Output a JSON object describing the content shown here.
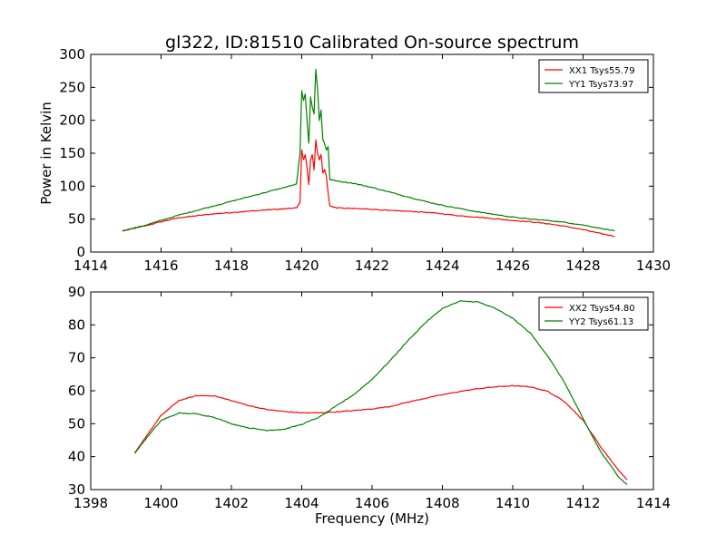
{
  "figure": {
    "title": "gl322, ID:81510 Calibrated On-source spectrum"
  },
  "chart_data": [
    {
      "type": "line",
      "title": "gl322, ID:81510 Calibrated On-source spectrum",
      "xlabel": "",
      "ylabel": "Power in Kelvin",
      "xlim": [
        1414,
        1430
      ],
      "ylim": [
        0,
        300
      ],
      "xticks": [
        1414,
        1416,
        1418,
        1420,
        1422,
        1424,
        1426,
        1428,
        1430
      ],
      "yticks": [
        0,
        50,
        100,
        150,
        200,
        250,
        300
      ],
      "grid": false,
      "legend_position": "top-right",
      "series": [
        {
          "name": "XX1 Tsys55.79",
          "color": "#ff0000",
          "x": [
            1414.9,
            1415.5,
            1416,
            1416.5,
            1417,
            1417.5,
            1418,
            1418.5,
            1419,
            1419.5,
            1419.85,
            1419.95,
            1420.0,
            1420.05,
            1420.1,
            1420.15,
            1420.2,
            1420.25,
            1420.3,
            1420.35,
            1420.4,
            1420.45,
            1420.5,
            1420.55,
            1420.6,
            1420.65,
            1420.7,
            1420.75,
            1420.8,
            1421,
            1421.5,
            1422,
            1422.5,
            1423,
            1423.5,
            1424,
            1424.5,
            1425,
            1425.5,
            1426,
            1426.5,
            1427,
            1427.5,
            1428,
            1428.5,
            1428.9
          ],
          "y": [
            32,
            39,
            46,
            52,
            55,
            58,
            60,
            62,
            64,
            65.5,
            67,
            75,
            155,
            140,
            148,
            128,
            103,
            140,
            148,
            125,
            170,
            150,
            140,
            148,
            120,
            125,
            115,
            90,
            70,
            67,
            66,
            65,
            63,
            62,
            60.5,
            58,
            55,
            53,
            50.5,
            48,
            46,
            43,
            39,
            34,
            28,
            24
          ]
        },
        {
          "name": "YY1 Tsys73.97",
          "color": "#008000",
          "x": [
            1414.9,
            1415.5,
            1416,
            1416.5,
            1417,
            1417.5,
            1418,
            1418.5,
            1419,
            1419.5,
            1419.85,
            1419.95,
            1420.0,
            1420.05,
            1420.1,
            1420.15,
            1420.2,
            1420.25,
            1420.3,
            1420.35,
            1420.4,
            1420.45,
            1420.5,
            1420.55,
            1420.6,
            1420.65,
            1420.7,
            1420.75,
            1420.8,
            1421,
            1421.5,
            1422,
            1422.5,
            1423,
            1423.5,
            1424,
            1424.5,
            1425,
            1425.5,
            1426,
            1426.5,
            1427,
            1427.5,
            1428,
            1428.5,
            1428.9
          ],
          "y": [
            32,
            40,
            48,
            56,
            63,
            70,
            77,
            84,
            91,
            98,
            103,
            150,
            245,
            230,
            240,
            200,
            165,
            235,
            220,
            210,
            277,
            248,
            200,
            215,
            170,
            165,
            155,
            160,
            110,
            108,
            104,
            98,
            91,
            84,
            77,
            71,
            66,
            61,
            57,
            53,
            50,
            48,
            45,
            41,
            36,
            32
          ]
        }
      ]
    },
    {
      "type": "line",
      "title": "",
      "xlabel": "Frequency (MHz)",
      "ylabel": "",
      "xlim": [
        1398,
        1414
      ],
      "ylim": [
        30,
        90
      ],
      "xticks": [
        1398,
        1400,
        1402,
        1404,
        1406,
        1408,
        1410,
        1412,
        1414
      ],
      "yticks": [
        30,
        40,
        50,
        60,
        70,
        80,
        90
      ],
      "grid": false,
      "legend_position": "top-right",
      "series": [
        {
          "name": "XX2 Tsys54.80",
          "color": "#ff0000",
          "x": [
            1399.25,
            1399.5,
            1400,
            1400.5,
            1401,
            1401.5,
            1402,
            1402.5,
            1403,
            1403.5,
            1404,
            1404.5,
            1405,
            1405.5,
            1406,
            1406.5,
            1407,
            1407.5,
            1408,
            1408.5,
            1409,
            1409.5,
            1410,
            1410.5,
            1411,
            1411.5,
            1412,
            1412.5,
            1413,
            1413.25
          ],
          "y": [
            41,
            45,
            52.5,
            57,
            58.5,
            58.5,
            57,
            55.5,
            54.3,
            53.7,
            53.3,
            53.3,
            53.6,
            54,
            54.5,
            55.2,
            56.5,
            57.7,
            58.8,
            59.8,
            60.6,
            61.2,
            61.5,
            61.2,
            59.8,
            56.5,
            51,
            43,
            36,
            33
          ]
        },
        {
          "name": "YY2 Tsys61.13",
          "color": "#008000",
          "x": [
            1399.25,
            1399.5,
            1400,
            1400.5,
            1401,
            1401.5,
            1402,
            1402.5,
            1403,
            1403.5,
            1404,
            1404.5,
            1405,
            1405.5,
            1406,
            1406.5,
            1407,
            1407.5,
            1408,
            1408.5,
            1409,
            1409.5,
            1410,
            1410.5,
            1411,
            1411.5,
            1412,
            1412.5,
            1413,
            1413.25
          ],
          "y": [
            41,
            44.5,
            51,
            53.2,
            53,
            52,
            50,
            48.7,
            48,
            48.3,
            49.8,
            52,
            55.5,
            59,
            63.5,
            69,
            75,
            80.5,
            85,
            87.2,
            87,
            85,
            82,
            77.5,
            70.5,
            62,
            51.5,
            41.5,
            34,
            31.5
          ]
        }
      ]
    }
  ]
}
